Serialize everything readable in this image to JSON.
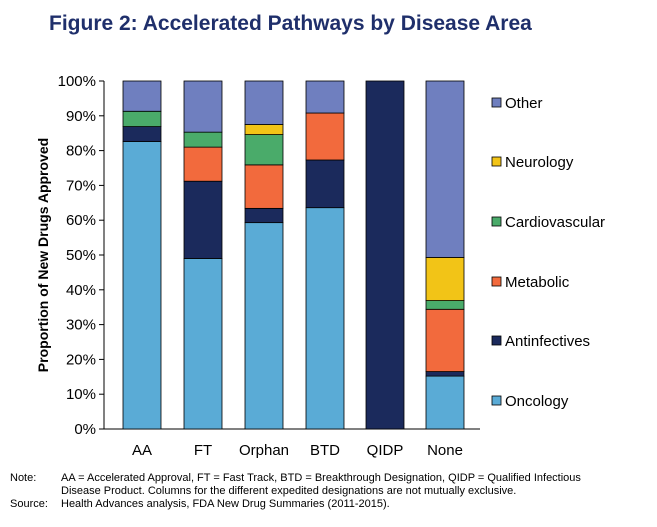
{
  "title": "Figure 2: Accelerated Pathways by Disease Area",
  "chart_data": {
    "type": "bar",
    "stacked": true,
    "ylabel": "Proportion of New Drugs Approved",
    "xlabel": "",
    "ylim": [
      0,
      100
    ],
    "yticks": [
      "0%",
      "10%",
      "20%",
      "30%",
      "40%",
      "50%",
      "60%",
      "70%",
      "80%",
      "90%",
      "100%"
    ],
    "categories": [
      "AA",
      "FT",
      "Orphan",
      "BTD",
      "QIDP",
      "None"
    ],
    "series": [
      {
        "name": "Oncology",
        "color": "#5aabd6",
        "values": [
          82.6,
          49.0,
          59.3,
          63.6,
          0.0,
          15.2
        ]
      },
      {
        "name": "Antinfectives",
        "color": "#1b2a5c",
        "values": [
          4.3,
          22.2,
          4.1,
          13.7,
          100.0,
          1.3
        ]
      },
      {
        "name": "Metabolic",
        "color": "#f26a3d",
        "values": [
          0.0,
          9.8,
          12.5,
          13.5,
          0.0,
          17.9
        ]
      },
      {
        "name": "Cardiovascular",
        "color": "#4aab6a",
        "values": [
          4.4,
          4.3,
          8.7,
          0.0,
          0.0,
          2.5
        ]
      },
      {
        "name": "Neurology",
        "color": "#f2c417",
        "values": [
          0.0,
          0.0,
          2.9,
          0.0,
          0.0,
          12.4
        ]
      },
      {
        "name": "Other",
        "color": "#6f7fbf",
        "values": [
          8.7,
          14.7,
          12.5,
          9.2,
          0.0,
          50.7
        ]
      }
    ],
    "legend_position": "right",
    "grid": false
  },
  "notes": {
    "note_label": "Note:",
    "note_line1": "AA = Accelerated Approval, FT = Fast Track, BTD = Breakthrough Designation, QIDP = Qualified Infectious",
    "note_line2": "Disease Product. Columns for the different expedited designations are not mutually exclusive.",
    "source_label": "Source:",
    "source_text": "Health Advances analysis, FDA New Drug Summaries (2011-2015)."
  }
}
